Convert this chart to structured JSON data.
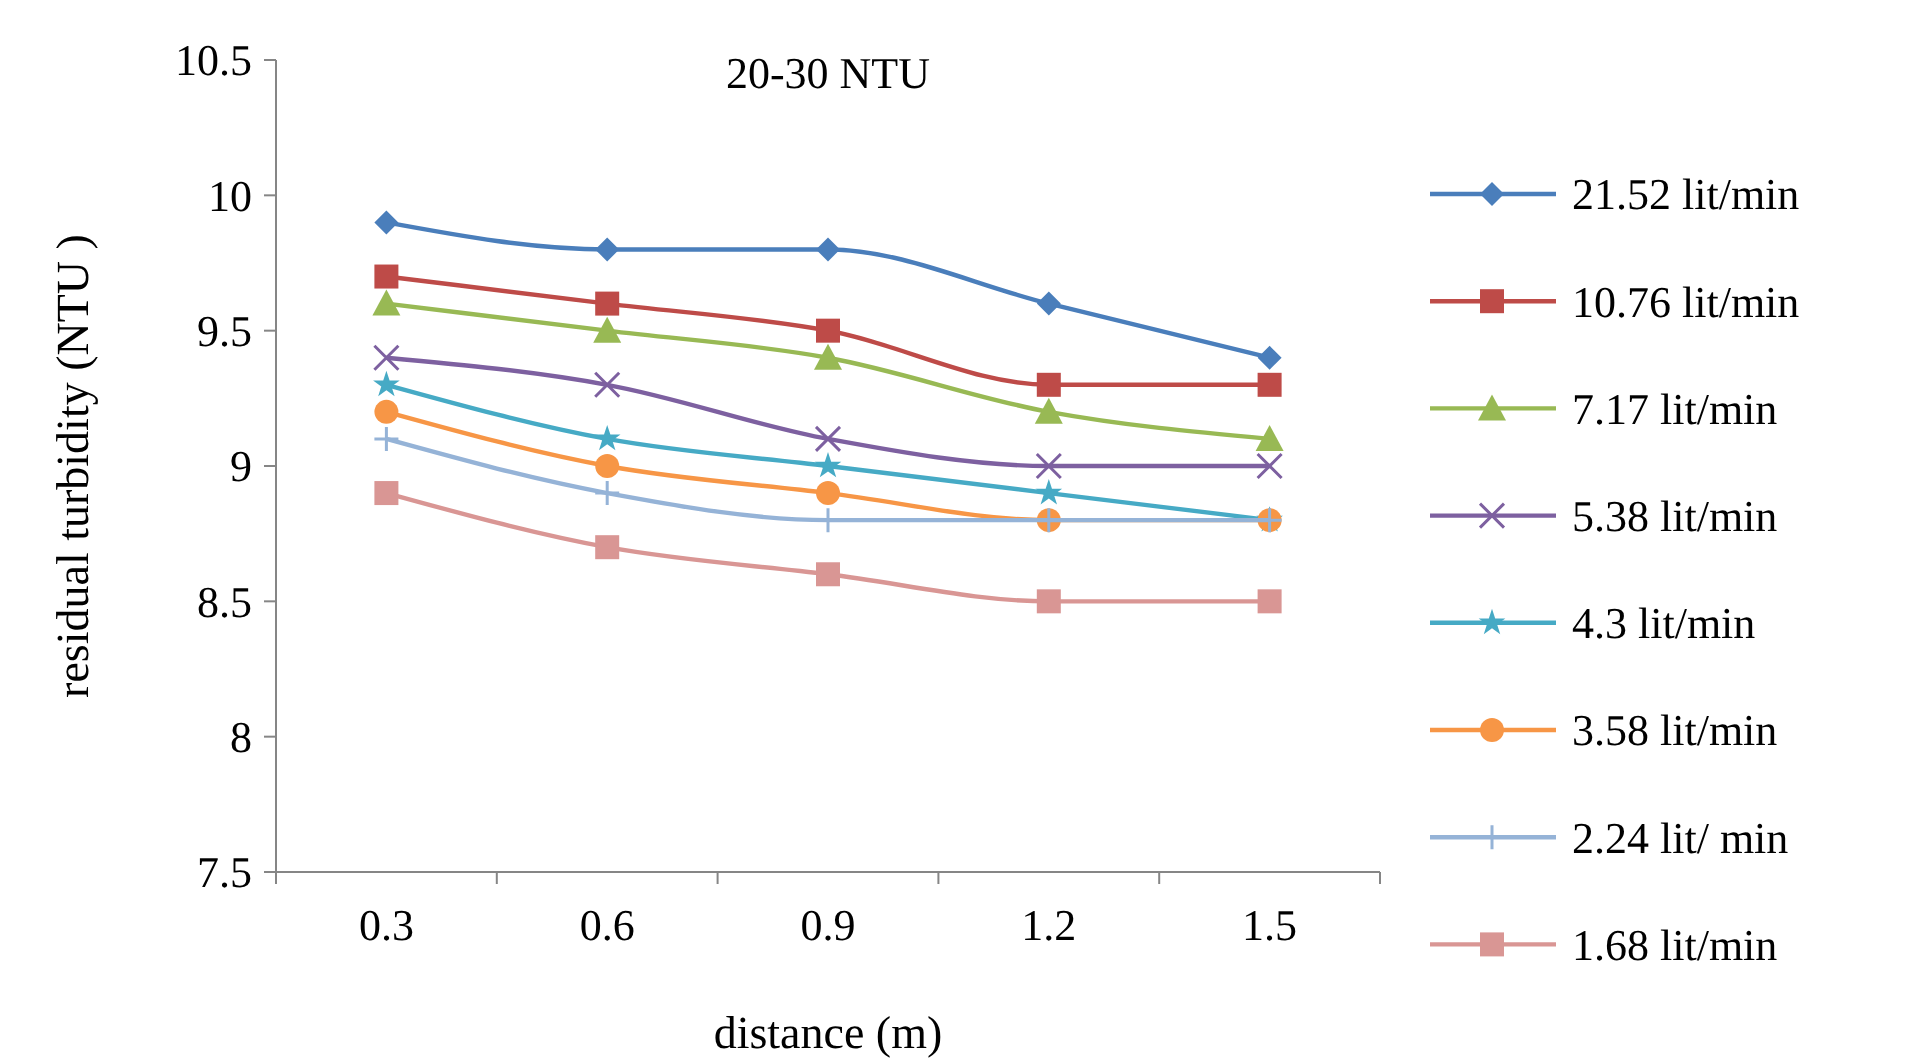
{
  "chart_data": {
    "type": "line",
    "title": "20-30 NTU",
    "xlabel": "distance (m)",
    "ylabel": "residual turbidity (NTU )",
    "categories": [
      "0.3",
      "0.6",
      "0.9",
      "1.2",
      "1.5"
    ],
    "ylim": [
      7.5,
      10.5
    ],
    "yticks": [
      7.5,
      8,
      8.5,
      9,
      9.5,
      10,
      10.5
    ],
    "grid": false,
    "legend": "right",
    "series": [
      {
        "name": "21.52 lit/min",
        "color": "#4a7ebb",
        "marker": "diamond",
        "values": [
          9.9,
          9.8,
          9.8,
          9.6,
          9.4
        ]
      },
      {
        "name": "10.76 lit/min",
        "color": "#be4b48",
        "marker": "square",
        "values": [
          9.7,
          9.6,
          9.5,
          9.3,
          9.3
        ]
      },
      {
        "name": "7.17 lit/min",
        "color": "#98b954",
        "marker": "triangle",
        "values": [
          9.6,
          9.5,
          9.4,
          9.2,
          9.1
        ]
      },
      {
        "name": "5.38 lit/min",
        "color": "#7d60a0",
        "marker": "x",
        "values": [
          9.4,
          9.3,
          9.1,
          9.0,
          9.0
        ]
      },
      {
        "name": "4.3 lit/min",
        "color": "#46aac5",
        "marker": "star",
        "values": [
          9.3,
          9.1,
          9.0,
          8.9,
          8.8
        ]
      },
      {
        "name": "3.58 lit/min",
        "color": "#f79646",
        "marker": "circle",
        "values": [
          9.2,
          9.0,
          8.9,
          8.8,
          8.8
        ]
      },
      {
        "name": "2.24 lit/ min",
        "color": "#95b3d7",
        "marker": "cross",
        "values": [
          9.1,
          8.9,
          8.8,
          8.8,
          8.8
        ]
      },
      {
        "name": "1.68 lit/min",
        "color": "#d99694",
        "marker": "square",
        "values": [
          8.9,
          8.7,
          8.6,
          8.5,
          8.5
        ]
      }
    ]
  }
}
